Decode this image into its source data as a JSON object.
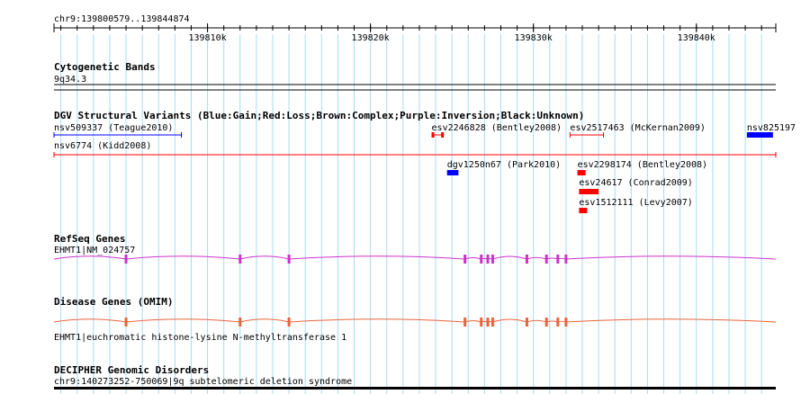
{
  "ruler": {
    "range_label": "chr9:139800579..139844874",
    "start": 139800579,
    "end": 139844874,
    "ticks": [
      {
        "pos": 139810000,
        "label": "139810k"
      },
      {
        "pos": 139820000,
        "label": "139820k"
      },
      {
        "pos": 139830000,
        "label": "139830k"
      },
      {
        "pos": 139840000,
        "label": "139840k"
      }
    ],
    "minor_step": 1000
  },
  "tracks": {
    "cyto": {
      "title": "Cytogenetic Bands",
      "band": "9q34.3"
    },
    "dgv": {
      "title": "DGV Structural Variants (Blue:Gain;Red:Loss;Brown:Complex;Purple:Inversion;Black:Unknown)",
      "features": [
        {
          "label": "nsv509337 (Teague2010)",
          "color": "#0000ff",
          "kind": "line",
          "start": 139800579,
          "end": 139808400,
          "row": 0
        },
        {
          "label": "esv2246828 (Bentley2008)",
          "color": "#ff0000",
          "kind": "bracket",
          "start": 139823750,
          "end": 139824500,
          "row": 0
        },
        {
          "label": "esv2517463 (McKernan2009)",
          "color": "#ff0000",
          "kind": "line",
          "start": 139832250,
          "end": 139834300,
          "row": 0
        },
        {
          "label": "nsv825197",
          "color": "#0000ff",
          "kind": "box",
          "start": 139843100,
          "end": 139844700,
          "row": 0
        },
        {
          "label": "nsv6774 (Kidd2008)",
          "color": "#ff0000",
          "kind": "line",
          "start": 139800579,
          "end": 139844874,
          "row": 1
        },
        {
          "label": "dgv1250n67 (Park2010)",
          "color": "#0000ff",
          "kind": "box",
          "start": 139824700,
          "end": 139825400,
          "row": 2
        },
        {
          "label": "esv2298174 (Bentley2008)",
          "color": "#ff0000",
          "kind": "box",
          "start": 139832700,
          "end": 139833200,
          "row": 2
        },
        {
          "label": "esv24617 (Conrad2009)",
          "color": "#ff0000",
          "kind": "box",
          "start": 139832800,
          "end": 139834000,
          "row": 3
        },
        {
          "label": "esv1512111 (Levy2007)",
          "color": "#ff0000",
          "kind": "box",
          "start": 139832800,
          "end": 139833300,
          "row": 4
        }
      ]
    },
    "refseq": {
      "title": "RefSeq Genes",
      "gene_label": "EHMT1|NM_024757",
      "color": "#cc33cc",
      "start": 139800579,
      "end": 139844874,
      "exons": [
        139805000,
        139812000,
        139815000,
        139825800,
        139826800,
        139827200,
        139827500,
        139829600,
        139830800,
        139831500,
        139832000
      ]
    },
    "omim": {
      "title": "Disease Genes (OMIM)",
      "gene_label": "EHMT1|euchromatic histone-lysine N-methyltransferase 1",
      "color": "#e8643c",
      "start": 139800579,
      "end": 139844874,
      "exons": [
        139805000,
        139812000,
        139815000,
        139825800,
        139826800,
        139827200,
        139827500,
        139829600,
        139830800,
        139831500,
        139832000
      ]
    },
    "decipher": {
      "title": "DECIPHER Genomic Disorders",
      "label": "chr9:140273252-750069|9q subtelomeric deletion syndrome"
    }
  }
}
